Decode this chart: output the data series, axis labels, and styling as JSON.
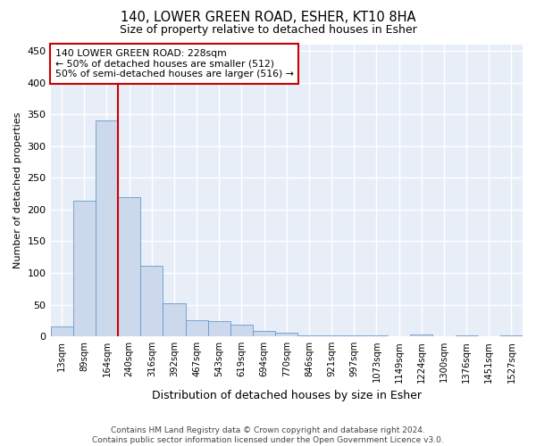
{
  "title": "140, LOWER GREEN ROAD, ESHER, KT10 8HA",
  "subtitle": "Size of property relative to detached houses in Esher",
  "xlabel": "Distribution of detached houses by size in Esher",
  "ylabel": "Number of detached properties",
  "bar_color": "#ccd9ec",
  "bar_edge_color": "#6699cc",
  "categories": [
    "13sqm",
    "89sqm",
    "164sqm",
    "240sqm",
    "316sqm",
    "392sqm",
    "467sqm",
    "543sqm",
    "619sqm",
    "694sqm",
    "770sqm",
    "846sqm",
    "921sqm",
    "997sqm",
    "1073sqm",
    "1149sqm",
    "1224sqm",
    "1300sqm",
    "1376sqm",
    "1451sqm",
    "1527sqm"
  ],
  "values": [
    15,
    214,
    340,
    220,
    111,
    52,
    25,
    24,
    18,
    9,
    6,
    2,
    1,
    1,
    1,
    0,
    3,
    0,
    1,
    0,
    2
  ],
  "vline_x": 2.5,
  "vline_color": "#cc0000",
  "annotation_line1": "140 LOWER GREEN ROAD: 228sqm",
  "annotation_line2": "← 50% of detached houses are smaller (512)",
  "annotation_line3": "50% of semi-detached houses are larger (516) →",
  "annotation_box_color": "#ffffff",
  "annotation_box_edge_color": "#cc0000",
  "ylim": [
    0,
    460
  ],
  "yticks": [
    0,
    50,
    100,
    150,
    200,
    250,
    300,
    350,
    400,
    450
  ],
  "footnote_line1": "Contains HM Land Registry data © Crown copyright and database right 2024.",
  "footnote_line2": "Contains public sector information licensed under the Open Government Licence v3.0.",
  "plot_bg_color": "#e8eef8",
  "fig_bg_color": "#ffffff",
  "grid_color": "#ffffff"
}
